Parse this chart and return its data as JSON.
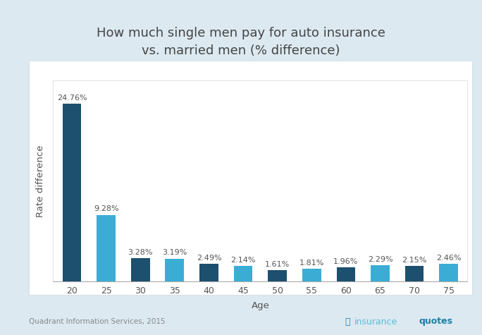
{
  "title": "How much single men pay for auto insurance\nvs. married men (% difference)",
  "xlabel": "Age",
  "ylabel": "Rate difference",
  "categories": [
    "20",
    "25",
    "30",
    "35",
    "40",
    "45",
    "50",
    "55",
    "60",
    "65",
    "70",
    "75"
  ],
  "values": [
    24.76,
    9.28,
    3.28,
    3.19,
    2.49,
    2.14,
    1.61,
    1.81,
    1.96,
    2.29,
    2.15,
    2.46
  ],
  "bar_colors": [
    "#1d4f6e",
    "#3badd4",
    "#1d4f6e",
    "#3badd4",
    "#1d4f6e",
    "#3badd4",
    "#1d4f6e",
    "#3badd4",
    "#1d4f6e",
    "#3badd4",
    "#1d4f6e",
    "#3badd4"
  ],
  "background_outer": "#dce9f0",
  "background_inner": "#ffffff",
  "title_fontsize": 13,
  "label_fontsize": 9.5,
  "tick_fontsize": 9,
  "annotation_fontsize": 8,
  "ylabel_fontsize": 9.5,
  "footer_left": "Quadrant Information Services, 2015",
  "footer_right_light": "insurance",
  "footer_right_bold": "quotes",
  "ylim": [
    0,
    28
  ],
  "grid_color": "#d0d8dd",
  "grid_y_ticks": [
    0,
    5,
    10,
    15,
    20,
    25
  ]
}
